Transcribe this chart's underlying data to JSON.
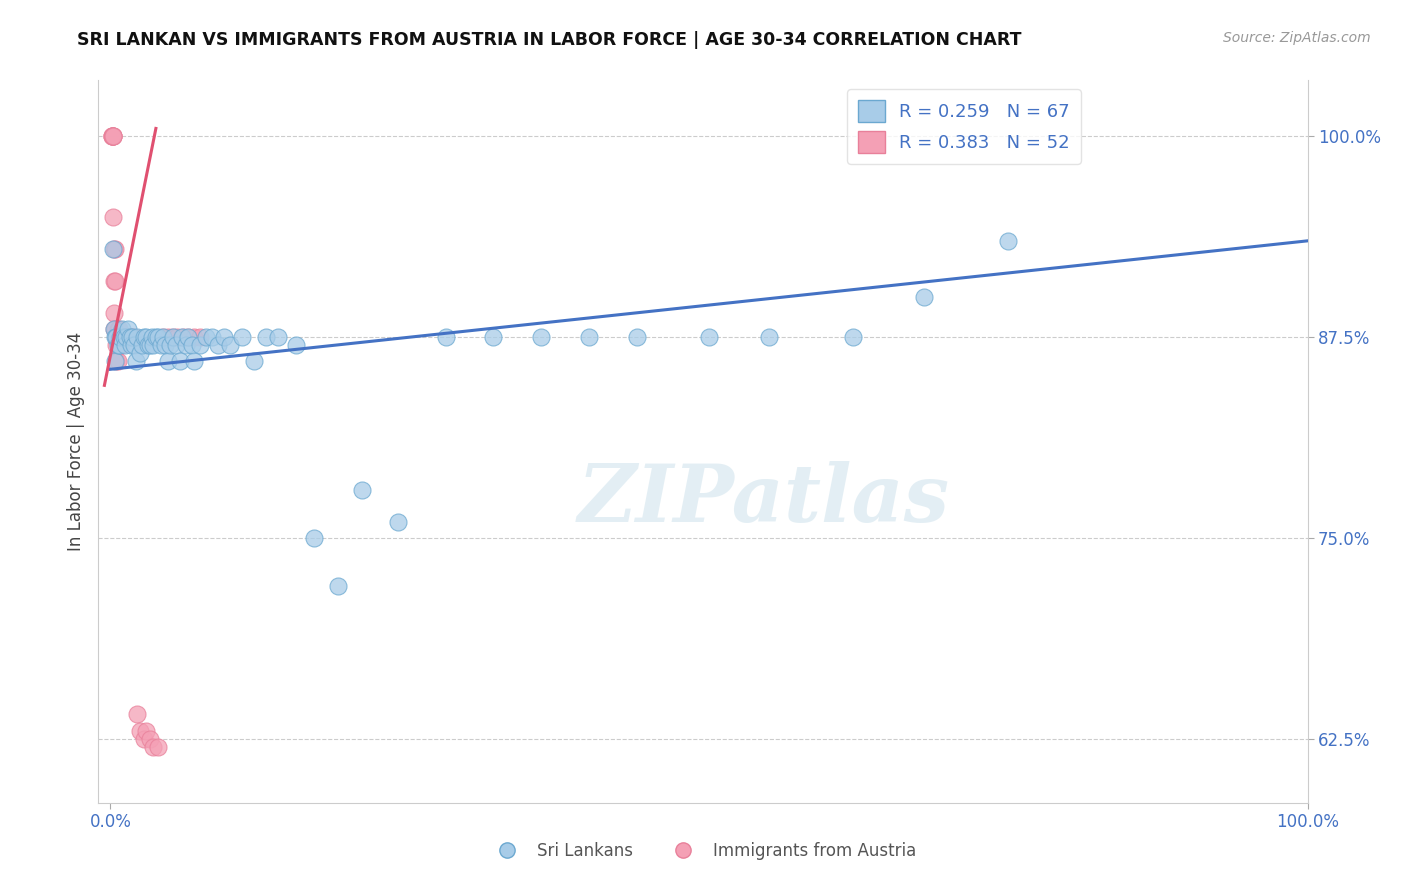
{
  "title": "SRI LANKAN VS IMMIGRANTS FROM AUSTRIA IN LABOR FORCE | AGE 30-34 CORRELATION CHART",
  "source": "Source: ZipAtlas.com",
  "ylabel": "In Labor Force | Age 30-34",
  "xlim": [
    -0.01,
    1.0
  ],
  "ylim": [
    0.585,
    1.035
  ],
  "xtick_positions": [
    0.0,
    1.0
  ],
  "xtick_labels": [
    "0.0%",
    "100.0%"
  ],
  "ytick_values": [
    0.625,
    0.75,
    0.875,
    1.0
  ],
  "ytick_labels": [
    "62.5%",
    "75.0%",
    "87.5%",
    "100.0%"
  ],
  "legend_r1": "R = 0.259",
  "legend_n1": "N = 67",
  "legend_r2": "R = 0.383",
  "legend_n2": "N = 52",
  "color_blue": "#A8CCE8",
  "color_pink": "#F4A0B5",
  "color_blue_line": "#4472C4",
  "color_pink_line": "#E05070",
  "watermark": "ZIPatlas",
  "sri_lankan_x": [
    0.002,
    0.003,
    0.004,
    0.004,
    0.005,
    0.006,
    0.007,
    0.008,
    0.01,
    0.011,
    0.012,
    0.013,
    0.015,
    0.016,
    0.017,
    0.018,
    0.02,
    0.021,
    0.022,
    0.025,
    0.026,
    0.028,
    0.03,
    0.031,
    0.033,
    0.035,
    0.036,
    0.038,
    0.04,
    0.042,
    0.044,
    0.046,
    0.048,
    0.05,
    0.052,
    0.055,
    0.058,
    0.06,
    0.063,
    0.065,
    0.068,
    0.07,
    0.075,
    0.08,
    0.085,
    0.09,
    0.095,
    0.1,
    0.11,
    0.12,
    0.13,
    0.14,
    0.155,
    0.17,
    0.19,
    0.21,
    0.24,
    0.28,
    0.32,
    0.36,
    0.4,
    0.44,
    0.5,
    0.55,
    0.62,
    0.68,
    0.75
  ],
  "sri_lankan_y": [
    0.93,
    0.88,
    0.875,
    0.86,
    0.875,
    0.87,
    0.87,
    0.875,
    0.88,
    0.875,
    0.87,
    0.875,
    0.88,
    0.875,
    0.87,
    0.875,
    0.87,
    0.86,
    0.875,
    0.865,
    0.87,
    0.875,
    0.875,
    0.87,
    0.87,
    0.875,
    0.87,
    0.875,
    0.875,
    0.87,
    0.875,
    0.87,
    0.86,
    0.87,
    0.875,
    0.87,
    0.86,
    0.875,
    0.87,
    0.875,
    0.87,
    0.86,
    0.87,
    0.875,
    0.875,
    0.87,
    0.875,
    0.87,
    0.875,
    0.86,
    0.875,
    0.875,
    0.87,
    0.75,
    0.72,
    0.78,
    0.76,
    0.875,
    0.875,
    0.875,
    0.875,
    0.875,
    0.875,
    0.875,
    0.875,
    0.9,
    0.935
  ],
  "austria_x": [
    0.001,
    0.001,
    0.001,
    0.002,
    0.002,
    0.002,
    0.002,
    0.002,
    0.003,
    0.003,
    0.003,
    0.003,
    0.004,
    0.004,
    0.004,
    0.005,
    0.005,
    0.005,
    0.006,
    0.006,
    0.006,
    0.007,
    0.007,
    0.008,
    0.008,
    0.009,
    0.009,
    0.01,
    0.011,
    0.012,
    0.013,
    0.014,
    0.015,
    0.016,
    0.017,
    0.018,
    0.02,
    0.022,
    0.025,
    0.028,
    0.03,
    0.033,
    0.036,
    0.04,
    0.044,
    0.048,
    0.052,
    0.056,
    0.061,
    0.065,
    0.07,
    0.075
  ],
  "austria_y": [
    1.0,
    1.0,
    1.0,
    1.0,
    1.0,
    1.0,
    1.0,
    0.95,
    0.93,
    0.91,
    0.89,
    0.88,
    0.93,
    0.91,
    0.88,
    0.875,
    0.87,
    0.86,
    0.88,
    0.875,
    0.86,
    0.88,
    0.875,
    0.875,
    0.87,
    0.875,
    0.87,
    0.875,
    0.875,
    0.875,
    0.875,
    0.875,
    0.875,
    0.875,
    0.875,
    0.875,
    0.875,
    0.64,
    0.63,
    0.625,
    0.63,
    0.625,
    0.62,
    0.62,
    0.875,
    0.875,
    0.875,
    0.875,
    0.875,
    0.875,
    0.875,
    0.875
  ],
  "blue_line_x": [
    0.0,
    1.0
  ],
  "blue_line_y": [
    0.855,
    0.935
  ],
  "pink_line_x": [
    -0.005,
    0.038
  ],
  "pink_line_y": [
    0.845,
    1.005
  ]
}
